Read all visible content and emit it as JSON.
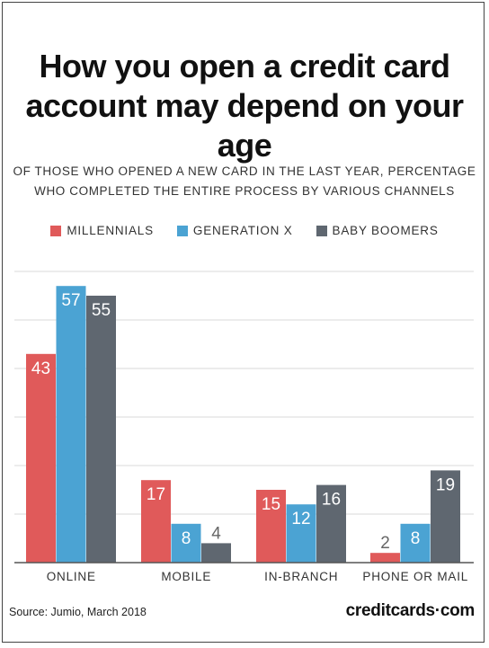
{
  "title": "How you open a credit card account may depend on your age",
  "title_line1": "How you open a credit card",
  "title_line2": "account may depend on your age",
  "subtitle_line1": "OF THOSE WHO OPENED A NEW CARD IN THE LAST YEAR, PERCENTAGE",
  "subtitle_line2": "WHO COMPLETED THE ENTIRE PROCESS BY VARIOUS CHANNELS",
  "source": "Source: Jumio, March 2018",
  "brand": "creditcards·com",
  "colors": {
    "millennials": "#e05a5a",
    "genx": "#4ba3d3",
    "boomers": "#5f6770",
    "grid": "#d9d9d9",
    "label_light": "#ffffff",
    "label_dark": "#666666"
  },
  "chart_data": {
    "type": "bar",
    "categories": [
      "ONLINE",
      "MOBILE",
      "IN-BRANCH",
      "PHONE OR MAIL"
    ],
    "series": [
      {
        "name": "MILLENNIALS",
        "values": [
          43,
          17,
          15,
          2
        ]
      },
      {
        "name": "GENERATION X",
        "values": [
          57,
          8,
          12,
          8
        ]
      },
      {
        "name": "BABY BOOMERS",
        "values": [
          55,
          4,
          16,
          19
        ]
      }
    ],
    "ylim": [
      0,
      60
    ],
    "y_gridlines": [
      0,
      10,
      20,
      30,
      40,
      50,
      60
    ],
    "grid": true,
    "legend_position": "top-center",
    "data_labels": true
  }
}
